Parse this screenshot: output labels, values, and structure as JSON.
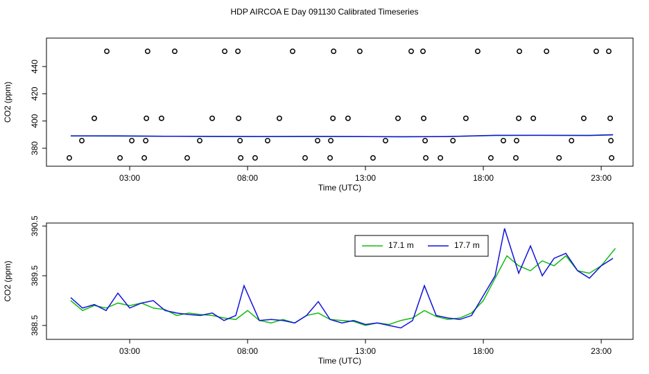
{
  "chart_data": [
    {
      "type": "line",
      "title": "HDP AIRCOA E  Day 091130  Calibrated Timeseries",
      "xlabel": "Time (UTC)",
      "ylabel": "CO2 (ppm)",
      "xlim": [
        -0.53,
        24.35
      ],
      "xticks": [
        {
          "value": 3,
          "label": "03:00"
        },
        {
          "value": 8,
          "label": "08:00"
        },
        {
          "value": 13,
          "label": "13:00"
        },
        {
          "value": 18,
          "label": "18:00"
        },
        {
          "value": 23,
          "label": "23:00"
        }
      ],
      "ylim": [
        366.8,
        460.9
      ],
      "yticks": [
        380,
        400,
        420,
        440
      ],
      "series": [
        {
          "color": "#11bb11",
          "x": [
            0.5,
            2.5,
            4.5,
            6.5,
            8.5,
            10.5,
            12.5,
            14.5,
            16.5,
            18.5,
            20.5,
            22.5,
            23.5
          ],
          "values": [
            389,
            388.9,
            388.8,
            388.7,
            388.6,
            388.7,
            388.6,
            388.5,
            388.6,
            389.4,
            389.5,
            389.5,
            390
          ]
        },
        {
          "color": "#1111dd",
          "x": [
            0.5,
            2.5,
            4.5,
            6.5,
            8.5,
            10.5,
            12.5,
            14.5,
            16.5,
            18.5,
            20.5,
            22.5,
            23.5
          ],
          "values": [
            389.1,
            389.1,
            388.8,
            388.7,
            388.6,
            388.7,
            388.6,
            388.4,
            388.6,
            389.5,
            389.5,
            389.4,
            389.8
          ]
        },
        {
          "color": "#000000",
          "marker": "circle",
          "x": [
            2.03,
            3.76,
            4.91,
            7.03,
            7.59,
            9.91,
            11.65,
            12.76,
            14.94,
            15.44,
            17.76,
            19.53,
            20.68,
            22.79,
            23.32,
            1.5,
            3.71,
            4.35,
            6.5,
            7.62,
            9.35,
            11.62,
            12.26,
            14.38,
            15.47,
            17.26,
            19.5,
            20.12,
            22.26,
            23.38,
            0.97,
            3.09,
            3.68,
            5.97,
            7.68,
            8.85,
            10.97,
            11.53,
            13.85,
            15.53,
            16.71,
            18.85,
            19.41,
            21.74,
            23.41,
            0.44,
            2.59,
            3.62,
            5.44,
            7.71,
            8.32,
            10.44,
            11.5,
            13.32,
            15.56,
            16.18,
            18.32,
            19.38,
            21.21,
            23.44
          ],
          "values": [
            451.2,
            451.2,
            451.2,
            451.2,
            451.2,
            451.2,
            451.2,
            451.2,
            451.2,
            451.2,
            451.2,
            451.2,
            451.2,
            451.2,
            451.2,
            402,
            402,
            402,
            402,
            402,
            402,
            402,
            402,
            402,
            402,
            402,
            402,
            402,
            402,
            402,
            385.6,
            385.6,
            385.6,
            385.6,
            385.6,
            385.6,
            385.6,
            385.6,
            385.6,
            385.6,
            385.6,
            385.6,
            385.6,
            385.6,
            385.6,
            372.9,
            372.9,
            372.9,
            372.9,
            372.9,
            372.9,
            372.9,
            372.9,
            372.9,
            372.9,
            372.9,
            372.9,
            372.9,
            372.9,
            372.9
          ]
        }
      ]
    },
    {
      "type": "line",
      "xlabel": "Time (UTC)",
      "ylabel": "CO2 (ppm)",
      "xlim": [
        -0.53,
        24.35
      ],
      "xticks": [
        {
          "value": 3,
          "label": "03:00"
        },
        {
          "value": 8,
          "label": "08:00"
        },
        {
          "value": 13,
          "label": "13:00"
        },
        {
          "value": 18,
          "label": "18:00"
        },
        {
          "value": 23,
          "label": "23:00"
        }
      ],
      "ylim": [
        388.22,
        390.56
      ],
      "yticks": [
        388.5,
        389.5,
        390.5
      ],
      "legend": "top-right",
      "series": [
        {
          "name": "17.1 m",
          "color": "#11bb11",
          "x": [
            0.5,
            1,
            1.5,
            2,
            2.5,
            3,
            3.5,
            4,
            4.5,
            5,
            5.5,
            6,
            6.5,
            7,
            7.5,
            8,
            8.5,
            9,
            9.5,
            10,
            10.5,
            11,
            11.5,
            12,
            12.5,
            13,
            13.5,
            14,
            14.5,
            15,
            15.5,
            16,
            16.5,
            17,
            17.5,
            18,
            18.5,
            19,
            19.5,
            20,
            20.5,
            21,
            21.5,
            22,
            22.5,
            23,
            23.6
          ],
          "values": [
            389.0,
            388.8,
            388.9,
            388.85,
            388.95,
            388.9,
            388.95,
            388.85,
            388.82,
            388.7,
            388.75,
            388.72,
            388.7,
            388.65,
            388.62,
            388.8,
            388.6,
            388.55,
            388.62,
            388.55,
            388.7,
            388.75,
            388.62,
            388.6,
            388.58,
            388.5,
            388.55,
            388.52,
            388.6,
            388.65,
            388.8,
            388.68,
            388.62,
            388.65,
            388.75,
            389.0,
            389.45,
            389.9,
            389.7,
            389.6,
            389.8,
            389.7,
            389.9,
            389.6,
            389.55,
            389.7,
            390.05
          ]
        },
        {
          "name": "17.7 m",
          "color": "#1111dd",
          "x": [
            0.5,
            1,
            1.5,
            2,
            2.5,
            3,
            3.5,
            4,
            4.5,
            5,
            5.5,
            6,
            6.5,
            7,
            7.5,
            7.85,
            8.5,
            9,
            9.5,
            10,
            10.5,
            11,
            11.5,
            12,
            12.5,
            13,
            13.5,
            14,
            14.5,
            15,
            15.5,
            16,
            16.5,
            17,
            17.5,
            18,
            18.5,
            18.9,
            19.5,
            20,
            20.5,
            21,
            21.5,
            22,
            22.5,
            23,
            23.5
          ],
          "values": [
            389.06,
            388.85,
            388.92,
            388.8,
            389.15,
            388.85,
            388.95,
            389.0,
            388.8,
            388.75,
            388.72,
            388.7,
            388.75,
            388.6,
            388.7,
            389.3,
            388.6,
            388.62,
            388.6,
            388.55,
            388.7,
            388.98,
            388.62,
            388.55,
            388.6,
            388.52,
            388.55,
            388.5,
            388.45,
            388.6,
            389.3,
            388.7,
            388.65,
            388.62,
            388.7,
            389.1,
            389.5,
            390.45,
            389.55,
            390.1,
            389.5,
            389.85,
            389.95,
            389.6,
            389.45,
            389.7,
            389.85
          ]
        }
      ]
    }
  ]
}
